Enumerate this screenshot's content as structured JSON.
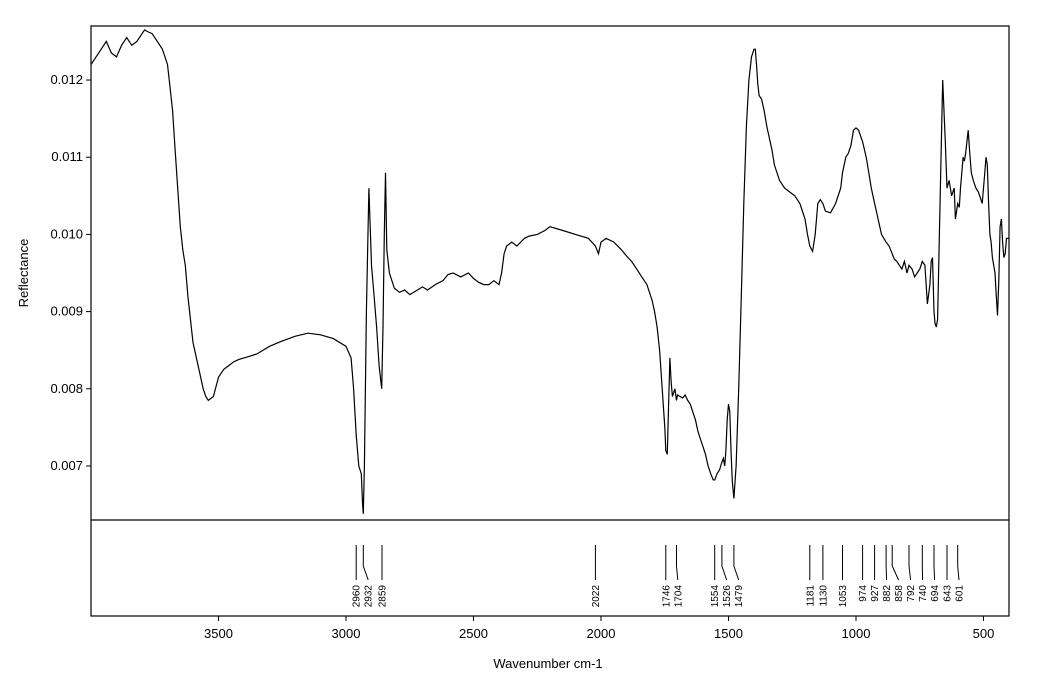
{
  "chart_data": {
    "type": "line",
    "xlabel": "Wavenumber cm-1",
    "ylabel": "Reflectance",
    "xlim": [
      4000,
      400
    ],
    "ylim": [
      0.0063,
      0.0127
    ],
    "x_ticks": [
      3500,
      3000,
      2500,
      2000,
      1500,
      1000,
      500
    ],
    "x_tick_labels": [
      "3500",
      "3000",
      "2500",
      "2000",
      "1500",
      "1000",
      "500"
    ],
    "y_ticks": [
      0.007,
      0.008,
      0.009,
      0.01,
      0.011,
      0.012
    ],
    "y_tick_labels": [
      "0.007",
      "0.008",
      "0.009",
      "0.010",
      "0.011",
      "0.012"
    ],
    "grid": false,
    "colors": {
      "line": "#000000",
      "frame": "#000000"
    },
    "series": [
      {
        "x": [
          4000,
          3960,
          3940,
          3920,
          3900,
          3880,
          3860,
          3840,
          3820,
          3800,
          3790,
          3780,
          3760,
          3740,
          3720,
          3700,
          3690,
          3680,
          3670,
          3660,
          3650,
          3640,
          3630,
          3620,
          3600,
          3580,
          3560,
          3550,
          3540,
          3520,
          3500,
          3480,
          3460,
          3440,
          3420,
          3400,
          3380,
          3350,
          3300,
          3250,
          3200,
          3150,
          3100,
          3050,
          3000,
          2980,
          2970,
          2960,
          2950,
          2940,
          2935,
          2932,
          2928,
          2920,
          2910,
          2900,
          2890,
          2880,
          2870,
          2860,
          2855,
          2850,
          2845,
          2840,
          2830,
          2810,
          2790,
          2770,
          2750,
          2720,
          2700,
          2680,
          2650,
          2620,
          2600,
          2580,
          2550,
          2520,
          2500,
          2480,
          2460,
          2440,
          2420,
          2400,
          2390,
          2380,
          2370,
          2350,
          2330,
          2300,
          2280,
          2250,
          2220,
          2200,
          2150,
          2100,
          2050,
          2022,
          2010,
          2000,
          1980,
          1950,
          1920,
          1900,
          1880,
          1860,
          1840,
          1820,
          1800,
          1790,
          1780,
          1770,
          1760,
          1750,
          1746,
          1740,
          1735,
          1730,
          1725,
          1720,
          1715,
          1710,
          1704,
          1700,
          1690,
          1680,
          1670,
          1660,
          1650,
          1640,
          1630,
          1620,
          1610,
          1600,
          1590,
          1580,
          1570,
          1560,
          1554,
          1545,
          1535,
          1526,
          1520,
          1515,
          1510,
          1505,
          1500,
          1495,
          1490,
          1485,
          1479,
          1470,
          1460,
          1450,
          1440,
          1430,
          1420,
          1410,
          1400,
          1395,
          1390,
          1385,
          1380,
          1370,
          1360,
          1350,
          1340,
          1330,
          1320,
          1300,
          1280,
          1260,
          1240,
          1220,
          1200,
          1190,
          1181,
          1170,
          1160,
          1150,
          1140,
          1130,
          1120,
          1100,
          1080,
          1060,
          1053,
          1040,
          1030,
          1020,
          1010,
          1000,
          990,
          974,
          960,
          950,
          940,
          927,
          920,
          910,
          900,
          882,
          870,
          858,
          850,
          840,
          830,
          820,
          810,
          800,
          792,
          780,
          770,
          760,
          750,
          740,
          730,
          720,
          710,
          705,
          700,
          694,
          690,
          685,
          680,
          670,
          660,
          650,
          643,
          635,
          625,
          615,
          610,
          601,
          595,
          590,
          585,
          580,
          575,
          570,
          560,
          555,
          548,
          540,
          530,
          520,
          510,
          505,
          500,
          495,
          490,
          485,
          480,
          475,
          470,
          465,
          460,
          455,
          450,
          445,
          440,
          435,
          430,
          425,
          420,
          415,
          410,
          405,
          400
        ],
        "y": [
          0.0122,
          0.0124,
          0.0125,
          0.01235,
          0.0123,
          0.01245,
          0.01255,
          0.01245,
          0.0125,
          0.0126,
          0.01265,
          0.01263,
          0.0126,
          0.0125,
          0.0124,
          0.0122,
          0.0119,
          0.0116,
          0.0111,
          0.0106,
          0.0101,
          0.0098,
          0.0096,
          0.0092,
          0.0086,
          0.0083,
          0.008,
          0.0079,
          0.00785,
          0.0079,
          0.00815,
          0.00825,
          0.0083,
          0.00835,
          0.00838,
          0.0084,
          0.00842,
          0.00845,
          0.00855,
          0.00862,
          0.00868,
          0.00872,
          0.0087,
          0.00865,
          0.00855,
          0.0084,
          0.008,
          0.0074,
          0.007,
          0.0069,
          0.0065,
          0.00638,
          0.007,
          0.009,
          0.0106,
          0.0096,
          0.0092,
          0.0088,
          0.0083,
          0.008,
          0.0088,
          0.01,
          0.0108,
          0.0098,
          0.0095,
          0.0093,
          0.00925,
          0.00928,
          0.00922,
          0.00928,
          0.00932,
          0.00928,
          0.00935,
          0.0094,
          0.00948,
          0.0095,
          0.00945,
          0.0095,
          0.00943,
          0.00938,
          0.00935,
          0.00935,
          0.0094,
          0.00935,
          0.0095,
          0.00975,
          0.00985,
          0.0099,
          0.00985,
          0.00995,
          0.00998,
          0.01,
          0.01005,
          0.0101,
          0.01005,
          0.01,
          0.00995,
          0.00985,
          0.00975,
          0.0099,
          0.00995,
          0.0099,
          0.0098,
          0.00972,
          0.00965,
          0.00955,
          0.00945,
          0.00935,
          0.00915,
          0.009,
          0.0088,
          0.0085,
          0.008,
          0.0075,
          0.0072,
          0.00715,
          0.0078,
          0.0084,
          0.0081,
          0.0079,
          0.00795,
          0.008,
          0.00785,
          0.00792,
          0.0079,
          0.00788,
          0.00792,
          0.00785,
          0.0078,
          0.0077,
          0.0076,
          0.00745,
          0.00735,
          0.00725,
          0.00715,
          0.007,
          0.0069,
          0.00682,
          0.00682,
          0.0069,
          0.00695,
          0.00705,
          0.0071,
          0.007,
          0.0072,
          0.0076,
          0.0078,
          0.0077,
          0.0072,
          0.0068,
          0.00658,
          0.007,
          0.008,
          0.0092,
          0.0104,
          0.0114,
          0.012,
          0.0123,
          0.0124,
          0.0124,
          0.0122,
          0.01195,
          0.0118,
          0.01175,
          0.0116,
          0.0114,
          0.01125,
          0.0111,
          0.0109,
          0.0107,
          0.0106,
          0.01055,
          0.0105,
          0.0104,
          0.0102,
          0.01,
          0.00985,
          0.00978,
          0.01,
          0.0104,
          0.01045,
          0.0104,
          0.0103,
          0.01028,
          0.0104,
          0.0106,
          0.0108,
          0.011,
          0.01105,
          0.01115,
          0.01135,
          0.01138,
          0.01135,
          0.0112,
          0.011,
          0.0108,
          0.0106,
          0.0104,
          0.0103,
          0.01015,
          0.01,
          0.0099,
          0.00985,
          0.00975,
          0.00968,
          0.00965,
          0.0096,
          0.00955,
          0.00965,
          0.0095,
          0.0096,
          0.00955,
          0.00945,
          0.0095,
          0.00955,
          0.00965,
          0.0096,
          0.0091,
          0.00935,
          0.00965,
          0.0097,
          0.009,
          0.00885,
          0.0088,
          0.0089,
          0.0105,
          0.012,
          0.0112,
          0.0106,
          0.0107,
          0.0105,
          0.0106,
          0.0102,
          0.0104,
          0.01035,
          0.0106,
          0.0108,
          0.011,
          0.01095,
          0.01105,
          0.01135,
          0.0111,
          0.0108,
          0.0107,
          0.0106,
          0.01055,
          0.01045,
          0.0104,
          0.0106,
          0.0108,
          0.011,
          0.0109,
          0.0104,
          0.01,
          0.0099,
          0.0097,
          0.0096,
          0.0095,
          0.0092,
          0.00895,
          0.0094,
          0.0101,
          0.0102,
          0.0099,
          0.0097,
          0.00975,
          0.00995,
          0.00995,
          0.00995
        ]
      }
    ],
    "peaks": [
      2960,
      2932,
      2859,
      2022,
      1746,
      1704,
      1554,
      1526,
      1479,
      1181,
      1130,
      1053,
      974,
      927,
      882,
      858,
      792,
      740,
      694,
      643,
      601
    ],
    "peak_labels": [
      "2960",
      "2932",
      "2859",
      "2022",
      "1746",
      "1704",
      "1554",
      "1526",
      "1479",
      "1181",
      "1130",
      "1053",
      "974",
      "927",
      "882",
      "858",
      "792",
      "740",
      "694",
      "643",
      "601"
    ]
  }
}
